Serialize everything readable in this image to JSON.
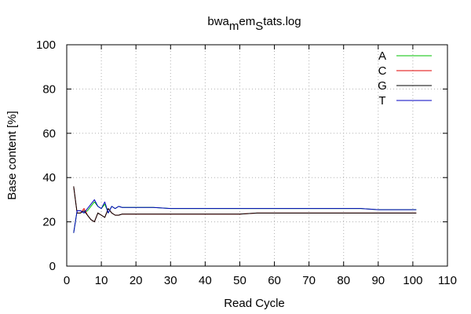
{
  "chart_data": {
    "type": "line",
    "title": {
      "parts": [
        "bwa",
        "m",
        "em",
        "S",
        "tats.log"
      ]
    },
    "xlabel": "Read Cycle",
    "ylabel": "Base content [%]",
    "xlim": [
      0,
      110
    ],
    "ylim": [
      0,
      100
    ],
    "xticks": [
      "0",
      "10",
      "20",
      "30",
      "40",
      "50",
      "60",
      "70",
      "80",
      "90",
      "100",
      "110"
    ],
    "yticks": [
      "0",
      "20",
      "40",
      "60",
      "80",
      "100"
    ],
    "grid": true,
    "legend_position": "top-right",
    "x": [
      2,
      3,
      4,
      5,
      6,
      7,
      8,
      9,
      10,
      11,
      12,
      13,
      14,
      15,
      16,
      17,
      18,
      19,
      20,
      25,
      30,
      35,
      40,
      45,
      50,
      55,
      60,
      65,
      70,
      75,
      80,
      85,
      90,
      95,
      100,
      101
    ],
    "series": [
      {
        "name": "A",
        "color": "#00c000",
        "values": [
          15,
          25,
          25,
          24,
          25,
          27,
          29,
          27,
          26,
          28,
          24,
          27,
          26,
          27,
          26.5,
          26.5,
          26.5,
          26.5,
          26.5,
          26.5,
          26,
          26,
          26,
          26,
          26,
          26,
          26,
          26,
          26,
          26,
          26,
          26,
          25.5,
          25.5,
          25.5,
          25.5
        ]
      },
      {
        "name": "C",
        "color": "#e00000",
        "values": [
          36,
          24,
          24,
          26,
          23,
          21,
          20,
          24,
          23,
          22,
          26,
          24,
          23,
          23,
          23.5,
          23.5,
          23.5,
          23.5,
          23.5,
          23.5,
          23.5,
          23.5,
          23.5,
          23.5,
          23.5,
          24,
          24,
          24,
          24,
          24,
          24,
          24,
          24,
          24,
          24,
          24
        ]
      },
      {
        "name": "G",
        "color": "#000000",
        "values": [
          36,
          24,
          24,
          25,
          23,
          21,
          20,
          24,
          23,
          22,
          26,
          24,
          23,
          23,
          23.5,
          23.5,
          23.5,
          23.5,
          23.5,
          23.5,
          23.5,
          23.5,
          23.5,
          23.5,
          23.5,
          24,
          24,
          24,
          24,
          24,
          24,
          24,
          24,
          24,
          24,
          24
        ]
      },
      {
        "name": "T",
        "color": "#0000c0",
        "values": [
          15,
          25,
          25,
          24,
          26,
          28,
          30,
          27,
          26,
          29,
          24,
          27,
          26,
          27,
          26.5,
          26.5,
          26.5,
          26.5,
          26.5,
          26.5,
          26,
          26,
          26,
          26,
          26,
          26,
          26,
          26,
          26,
          26,
          26,
          26,
          25.5,
          25.5,
          25.5,
          25.5
        ]
      }
    ]
  }
}
